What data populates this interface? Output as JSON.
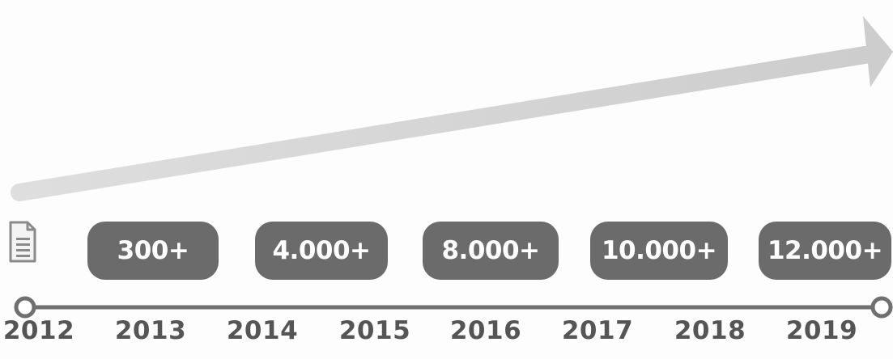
{
  "milestones": [
    {
      "label": "300+"
    },
    {
      "label": "4.000+"
    },
    {
      "label": "8.000+"
    },
    {
      "label": "10.000+"
    },
    {
      "label": "12.000+"
    }
  ],
  "timeline": {
    "years": [
      "2012",
      "2013",
      "2014",
      "2015",
      "2016",
      "2017",
      "2018",
      "2019"
    ]
  },
  "icons": {
    "start": "document-icon"
  },
  "colors": {
    "badge": "#6b6b6b",
    "badge_text": "#ffffff",
    "arrow": "#d6d6d6",
    "timeline": "#707070",
    "year_text": "#555555"
  }
}
